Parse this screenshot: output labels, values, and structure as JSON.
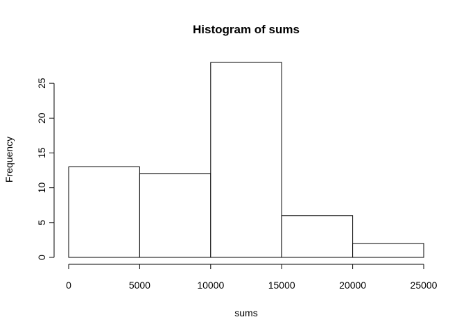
{
  "chart_data": {
    "type": "bar",
    "title": "Histogram of sums",
    "xlabel": "sums",
    "ylabel": "Frequency",
    "bins": [
      {
        "from": 0,
        "to": 5000,
        "count": 13
      },
      {
        "from": 5000,
        "to": 10000,
        "count": 12
      },
      {
        "from": 10000,
        "to": 15000,
        "count": 28
      },
      {
        "from": 15000,
        "to": 20000,
        "count": 6
      },
      {
        "from": 20000,
        "to": 25000,
        "count": 2
      }
    ],
    "xlim": [
      0,
      25000
    ],
    "ylim": [
      0,
      28
    ],
    "x_ticks": [
      0,
      5000,
      10000,
      15000,
      20000,
      25000
    ],
    "x_tick_labels": [
      "0",
      "5000",
      "10000",
      "15000",
      "20000",
      "25000"
    ],
    "y_ticks": [
      0,
      5,
      10,
      15,
      20,
      25
    ],
    "y_tick_labels": [
      "0",
      "5",
      "10",
      "15",
      "20",
      "25"
    ],
    "grid": false,
    "legend": "none",
    "bar_fill": "#ffffff",
    "bar_stroke": "#000000"
  }
}
